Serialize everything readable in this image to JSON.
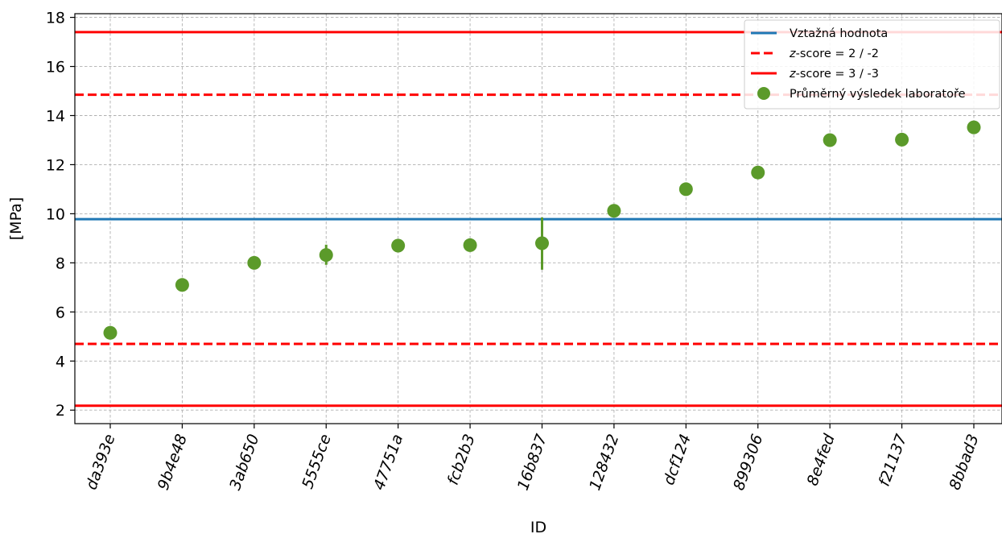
{
  "chart_data": {
    "type": "scatter",
    "title": "",
    "xlabel": "ID",
    "ylabel": "[MPa]",
    "ylim": [
      1.45,
      18.15
    ],
    "yticks": [
      2,
      4,
      6,
      8,
      10,
      12,
      14,
      16,
      18
    ],
    "grid": true,
    "legend_position": "top-right",
    "categories": [
      "da393e",
      "9b4e48",
      "3ab650",
      "5555ce",
      "47751a",
      "fcb2b3",
      "16b837",
      "128432",
      "dcf124",
      "899306",
      "8e4fed",
      "f21137",
      "8bbad3"
    ],
    "series": [
      {
        "name": "Průměrný výsledek laboratoře",
        "kind": "points",
        "color": "#5b9a2a",
        "values": [
          5.15,
          7.1,
          8.0,
          8.32,
          8.7,
          8.72,
          8.8,
          10.12,
          11.0,
          11.68,
          13.0,
          13.02,
          13.52
        ],
        "err_low": [
          5.15,
          7.1,
          8.0,
          7.92,
          8.7,
          8.72,
          7.72,
          10.12,
          11.0,
          11.68,
          13.0,
          13.02,
          13.52
        ],
        "err_high": [
          5.15,
          7.1,
          8.0,
          8.74,
          8.7,
          8.72,
          9.85,
          10.12,
          11.0,
          11.68,
          13.0,
          13.02,
          13.52
        ]
      }
    ],
    "reference_lines": [
      {
        "name": "Vztažná hodnota",
        "value": 9.78,
        "color": "#1f77b4",
        "style": "solid"
      },
      {
        "name": "z-score = 2 / -2",
        "values": [
          14.85,
          4.7
        ],
        "color": "#ff0000",
        "style": "dashed"
      },
      {
        "name": "z-score = 3 / -3",
        "values": [
          17.4,
          2.18
        ],
        "color": "#ff0000",
        "style": "solid"
      }
    ],
    "legend": [
      {
        "label_prefix": "",
        "label_italic": "",
        "label_rest": "Vztažná hodnota",
        "marker": "line-solid",
        "color": "#1f77b4"
      },
      {
        "label_prefix": "",
        "label_italic": "z",
        "label_rest": "-score = 2 / -2",
        "marker": "line-dashed",
        "color": "#ff0000"
      },
      {
        "label_prefix": "",
        "label_italic": "z",
        "label_rest": "-score = 3 / -3",
        "marker": "line-solid",
        "color": "#ff0000"
      },
      {
        "label_prefix": "",
        "label_italic": "",
        "label_rest": "Průměrný výsledek laboratoře",
        "marker": "dot",
        "color": "#5b9a2a"
      }
    ]
  }
}
